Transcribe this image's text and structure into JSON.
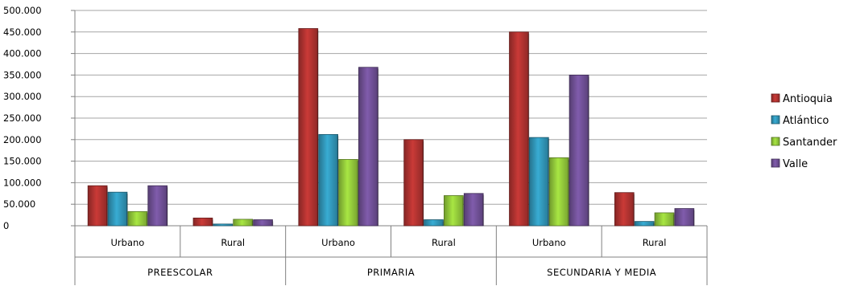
{
  "chart_data": {
    "type": "bar",
    "groups": [
      {
        "label": "PREESCOLAR",
        "categories": [
          "Urbano",
          "Rural"
        ]
      },
      {
        "label": "PRIMARIA",
        "categories": [
          "Urbano",
          "Rural"
        ]
      },
      {
        "label": "SECUNDARIA Y MEDIA",
        "categories": [
          "Urbano",
          "Rural"
        ]
      }
    ],
    "series": [
      {
        "name": "Antioquia",
        "color": "#a8302e",
        "values": [
          93000,
          18000,
          458000,
          200000,
          450000,
          77000
        ]
      },
      {
        "name": "Atlántico",
        "color": "#2f8fb0",
        "values": [
          78000,
          4000,
          212000,
          14000,
          205000,
          10000
        ]
      },
      {
        "name": "Santander",
        "color": "#8cc038",
        "values": [
          33000,
          15000,
          154000,
          70000,
          158000,
          30000
        ]
      },
      {
        "name": "Valle",
        "color": "#6b4d8f",
        "values": [
          93000,
          14000,
          368000,
          75000,
          350000,
          40000
        ]
      }
    ],
    "ylim": [
      0,
      500000
    ],
    "yticks": [
      0,
      50000,
      100000,
      150000,
      200000,
      250000,
      300000,
      350000,
      400000,
      450000,
      500000
    ],
    "ytick_labels": [
      "0",
      "50.000",
      "100.000",
      "150.000",
      "200.000",
      "250.000",
      "300.000",
      "350.000",
      "400.000",
      "450.000",
      "500.000"
    ],
    "grid": true,
    "legend_position": "right"
  }
}
